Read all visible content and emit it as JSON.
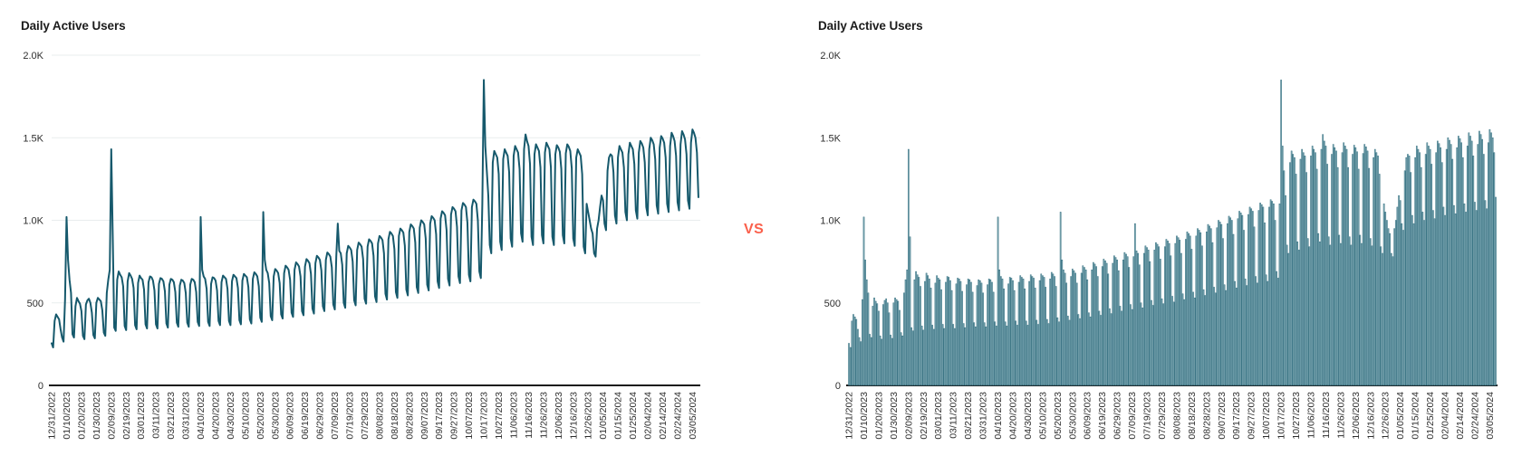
{
  "vs_label": "VS",
  "chart_data": {
    "charts": [
      {
        "type": "line",
        "title": "Daily Active Users",
        "grid": true
      },
      {
        "type": "bar",
        "title": "Daily Active Users",
        "grid": false
      }
    ],
    "series_name": "Daily Active Users",
    "ylim": [
      0,
      2000
    ],
    "y_ticks": [
      {
        "value": 2000,
        "label": "2.0K"
      },
      {
        "value": 1500,
        "label": "1.5K"
      },
      {
        "value": 1000,
        "label": "1.0K"
      },
      {
        "value": 500,
        "label": "500"
      },
      {
        "value": 0,
        "label": "0"
      }
    ],
    "x_tick_interval_days": 10,
    "x_tick_labels": [
      "12/31/2022",
      "01/10/2023",
      "01/20/2023",
      "01/30/2023",
      "02/09/2023",
      "02/19/2023",
      "03/01/2023",
      "03/11/2023",
      "03/21/2023",
      "03/31/2023",
      "04/10/2023",
      "04/20/2023",
      "04/30/2023",
      "05/10/2023",
      "05/20/2023",
      "05/30/2023",
      "06/09/2023",
      "06/19/2023",
      "06/29/2023",
      "07/09/2023",
      "07/19/2023",
      "07/29/2023",
      "08/08/2023",
      "08/18/2023",
      "08/28/2023",
      "09/07/2023",
      "09/17/2023",
      "09/27/2023",
      "10/07/2023",
      "10/17/2023",
      "10/27/2023",
      "11/06/2023",
      "11/16/2023",
      "11/26/2023",
      "12/06/2023",
      "12/16/2023",
      "12/26/2023",
      "01/05/2024",
      "01/15/2024",
      "01/25/2024",
      "02/04/2024",
      "02/14/2024",
      "02/24/2024",
      "03/05/2024"
    ],
    "values": [
      255,
      230,
      390,
      430,
      415,
      400,
      340,
      290,
      265,
      520,
      1020,
      760,
      640,
      560,
      310,
      290,
      480,
      530,
      510,
      495,
      450,
      300,
      280,
      490,
      515,
      525,
      500,
      440,
      305,
      285,
      500,
      530,
      520,
      510,
      455,
      320,
      300,
      560,
      640,
      700,
      1430,
      900,
      350,
      330,
      640,
      690,
      670,
      655,
      600,
      360,
      335,
      630,
      680,
      665,
      645,
      590,
      365,
      340,
      620,
      665,
      650,
      640,
      580,
      370,
      345,
      625,
      660,
      655,
      635,
      575,
      370,
      345,
      615,
      650,
      645,
      630,
      570,
      375,
      350,
      610,
      645,
      640,
      625,
      565,
      380,
      355,
      605,
      640,
      635,
      620,
      560,
      380,
      355,
      610,
      645,
      640,
      625,
      565,
      385,
      360,
      1020,
      700,
      660,
      645,
      585,
      385,
      360,
      615,
      655,
      650,
      635,
      575,
      390,
      365,
      625,
      665,
      655,
      645,
      585,
      390,
      365,
      630,
      670,
      660,
      650,
      590,
      395,
      370,
      635,
      675,
      665,
      655,
      595,
      400,
      375,
      645,
      685,
      675,
      660,
      600,
      410,
      385,
      1050,
      760,
      700,
      680,
      620,
      420,
      395,
      660,
      705,
      695,
      680,
      620,
      430,
      405,
      680,
      725,
      715,
      700,
      640,
      440,
      415,
      700,
      745,
      735,
      720,
      660,
      450,
      425,
      720,
      765,
      755,
      740,
      675,
      465,
      435,
      740,
      785,
      775,
      760,
      695,
      480,
      450,
      760,
      805,
      795,
      780,
      715,
      490,
      460,
      780,
      980,
      815,
      800,
      730,
      500,
      470,
      800,
      845,
      835,
      820,
      750,
      515,
      485,
      820,
      865,
      855,
      840,
      765,
      525,
      495,
      840,
      885,
      875,
      860,
      785,
      540,
      505,
      860,
      905,
      895,
      880,
      800,
      555,
      520,
      885,
      930,
      920,
      905,
      825,
      565,
      530,
      905,
      950,
      940,
      925,
      845,
      580,
      545,
      930,
      975,
      965,
      950,
      865,
      595,
      560,
      955,
      1000,
      990,
      975,
      890,
      610,
      575,
      980,
      1025,
      1015,
      1000,
      915,
      630,
      590,
      1010,
      1055,
      1045,
      1030,
      940,
      645,
      605,
      1035,
      1080,
      1070,
      1055,
      960,
      660,
      620,
      1060,
      1105,
      1095,
      1080,
      985,
      670,
      630,
      1080,
      1125,
      1115,
      1100,
      1000,
      690,
      650,
      1100,
      1850,
      1450,
      1300,
      1150,
      850,
      800,
      1350,
      1420,
      1400,
      1380,
      1280,
      870,
      820,
      1370,
      1430,
      1410,
      1390,
      1290,
      890,
      840,
      1390,
      1450,
      1430,
      1410,
      1310,
      920,
      870,
      1430,
      1520,
      1480,
      1450,
      1340,
      900,
      850,
      1400,
      1460,
      1440,
      1420,
      1320,
      910,
      860,
      1410,
      1470,
      1450,
      1430,
      1320,
      900,
      850,
      1400,
      1455,
      1440,
      1415,
      1310,
      910,
      860,
      1405,
      1460,
      1445,
      1420,
      1315,
      890,
      845,
      1380,
      1430,
      1410,
      1390,
      1280,
      840,
      800,
      1100,
      1050,
      1000,
      950,
      920,
      800,
      780,
      950,
      1000,
      1080,
      1150,
      1120,
      980,
      940,
      1300,
      1380,
      1400,
      1390,
      1290,
      1030,
      980,
      1380,
      1450,
      1430,
      1410,
      1320,
      1050,
      1000,
      1400,
      1470,
      1450,
      1430,
      1340,
      1060,
      1010,
      1410,
      1480,
      1465,
      1440,
      1350,
      1080,
      1030,
      1430,
      1500,
      1485,
      1460,
      1370,
      1090,
      1040,
      1440,
      1510,
      1495,
      1470,
      1380,
      1100,
      1050,
      1450,
      1530,
      1510,
      1480,
      1390,
      1110,
      1060,
      1460,
      1540,
      1520,
      1490,
      1400,
      1120,
      1070,
      1470,
      1550,
      1530,
      1500,
      1410,
      1140
    ],
    "colors": {
      "line": "#16596c",
      "bar_fill": "#7fa9b4",
      "bar_stroke": "#2e6b7c",
      "grid": "#e9edee",
      "axis": "#1a1a1a",
      "label": "#2e2e2e",
      "vs": "#fa604c"
    }
  }
}
